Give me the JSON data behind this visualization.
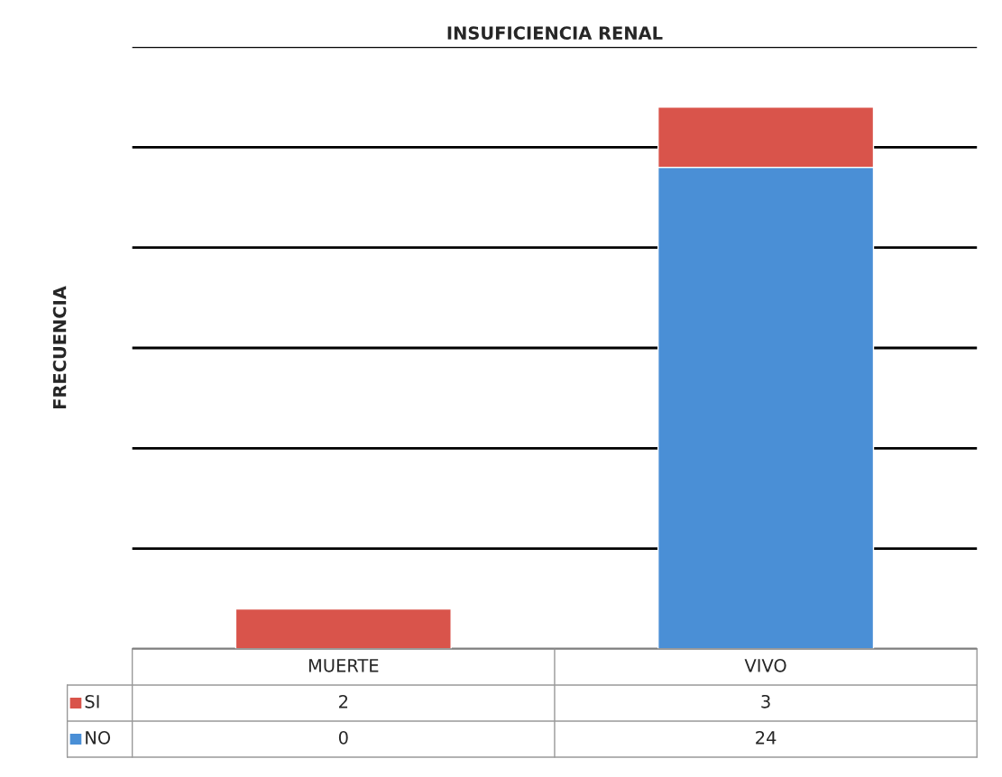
{
  "chart_data": {
    "type": "bar",
    "title": "INSUFICIENCIA RENAL",
    "ylabel": "FRECUENCIA",
    "categories": [
      "MUERTE",
      "VIVO"
    ],
    "series": [
      {
        "name": "NO",
        "color": "#4a8fd6",
        "values": [
          0,
          24
        ]
      },
      {
        "name": "SI",
        "color": "#d9544b",
        "values": [
          2,
          3
        ]
      }
    ],
    "stacked": true,
    "ylim": [
      0,
      30
    ],
    "yticks": [
      {
        "value": 0,
        "label": null
      },
      {
        "value": 5,
        "label": null
      },
      {
        "value": 10,
        "label": null
      },
      {
        "value": 15,
        "label": null
      },
      {
        "value": 20,
        "label": null
      },
      {
        "value": 25,
        "label": null
      },
      {
        "value": 30,
        "label": null
      }
    ],
    "grid": "y",
    "data_labels": true,
    "legend": "bottom",
    "tick_labels": false
  }
}
